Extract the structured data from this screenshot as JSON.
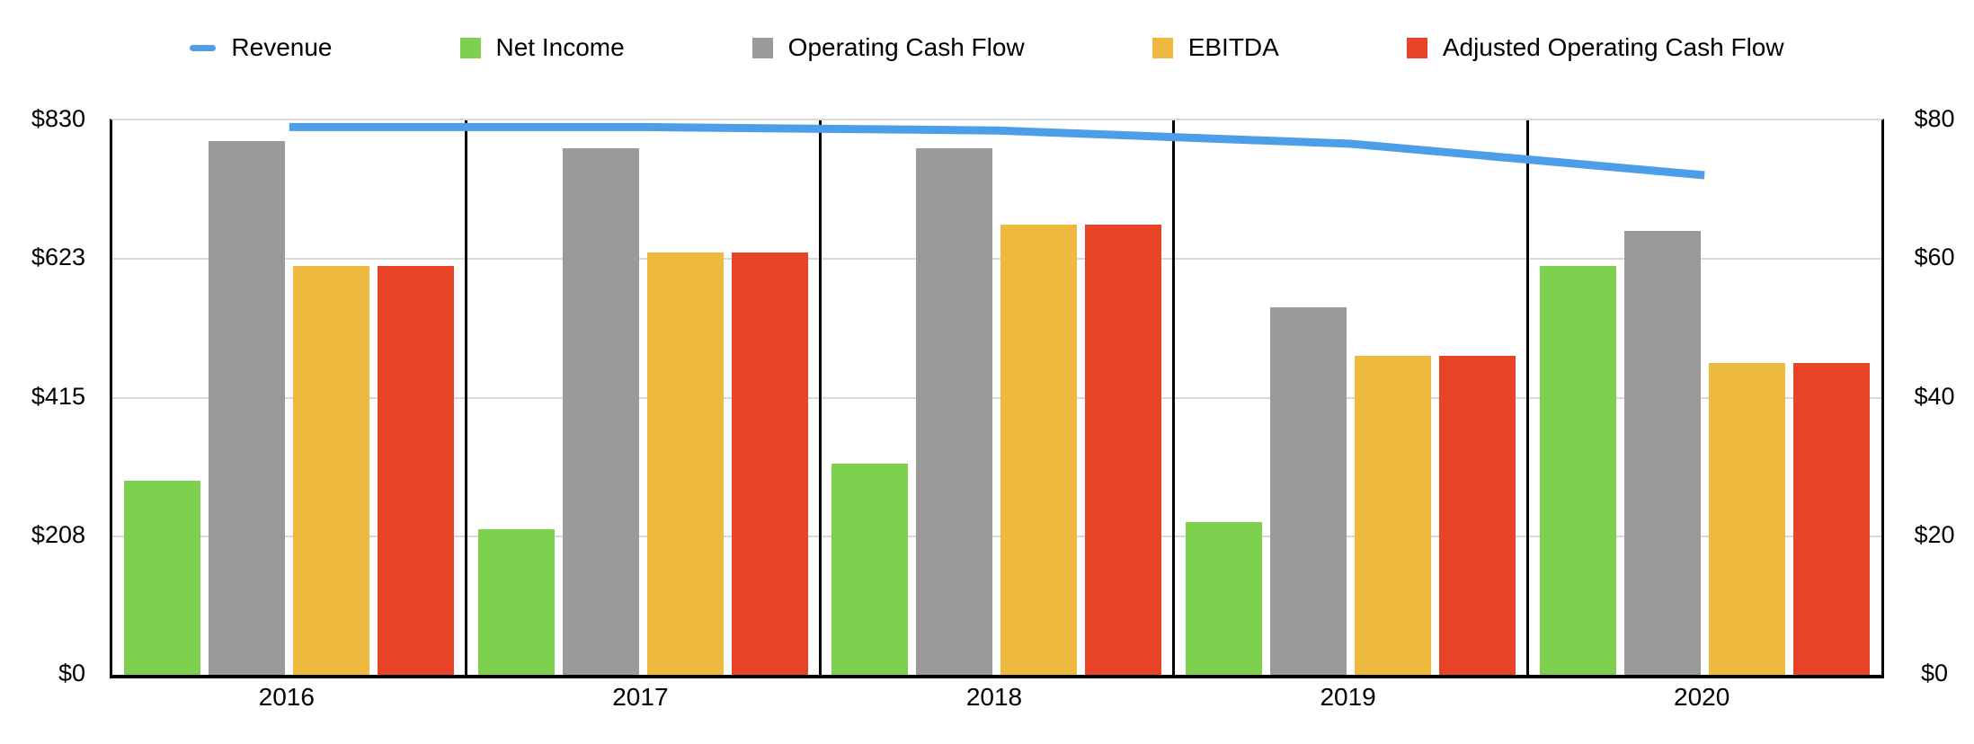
{
  "chart_data": {
    "type": "combo",
    "title": "",
    "categories": [
      "2016",
      "2017",
      "2018",
      "2019",
      "2020"
    ],
    "left_axis": {
      "ticks_top_to_bottom": [
        "$830",
        "$623",
        "$415",
        "$208",
        "$0"
      ],
      "min": 0,
      "max": 830
    },
    "right_axis": {
      "ticks_top_to_bottom": [
        "$80",
        "$60",
        "$40",
        "$20",
        "$0"
      ],
      "min": 0,
      "max": 80
    },
    "grid": true,
    "legend_position": "top",
    "series": [
      {
        "name": "Revenue",
        "type": "line",
        "axis": "left",
        "color": "#4d9ee9",
        "values": [
          820,
          820,
          815,
          795,
          748
        ]
      },
      {
        "name": "Net Income",
        "type": "bar",
        "axis": "right",
        "color": "#7ed04f",
        "values": [
          28,
          21,
          30.5,
          22,
          59
        ]
      },
      {
        "name": "Operating Cash Flow",
        "type": "bar",
        "axis": "right",
        "color": "#9a9a9a",
        "values": [
          77,
          76,
          76,
          53,
          64
        ]
      },
      {
        "name": "EBITDA",
        "type": "bar",
        "axis": "right",
        "color": "#edb93f",
        "values": [
          59,
          61,
          65,
          46,
          45
        ]
      },
      {
        "name": "Adjusted Operating Cash Flow",
        "type": "bar",
        "axis": "right",
        "color": "#e84227",
        "values": [
          59,
          61,
          65,
          46,
          45
        ]
      }
    ],
    "colors": {
      "gridline": "#d9d9d9",
      "axis": "#000000",
      "background": "#ffffff",
      "text": "#000000"
    }
  }
}
